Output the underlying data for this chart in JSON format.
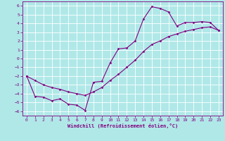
{
  "xlabel": "Windchill (Refroidissement éolien,°C)",
  "background_color": "#b0e8e8",
  "grid_color": "#ffffff",
  "line_color": "#800080",
  "curve1_x": [
    0,
    1,
    2,
    3,
    4,
    5,
    6,
    7,
    8,
    9,
    10,
    11,
    12,
    13,
    14,
    15,
    16,
    17,
    18,
    19,
    20,
    21,
    22,
    23
  ],
  "curve1_y": [
    -2,
    -4.3,
    -4.4,
    -4.8,
    -4.6,
    -5.2,
    -5.3,
    -5.9,
    -2.7,
    -2.6,
    -0.5,
    1.1,
    1.2,
    2.0,
    4.5,
    5.9,
    5.7,
    5.3,
    3.7,
    4.1,
    4.1,
    4.2,
    4.1,
    3.2
  ],
  "curve2_x": [
    0,
    1,
    2,
    3,
    4,
    5,
    6,
    7,
    8,
    9,
    10,
    11,
    12,
    13,
    14,
    15,
    16,
    17,
    18,
    19,
    20,
    21,
    22,
    23
  ],
  "curve2_y": [
    -2,
    -2.5,
    -3.0,
    -3.3,
    -3.5,
    -3.8,
    -4.0,
    -4.2,
    -3.8,
    -3.3,
    -2.5,
    -1.8,
    -1.0,
    -0.2,
    0.8,
    1.6,
    2.0,
    2.5,
    2.8,
    3.1,
    3.3,
    3.5,
    3.6,
    3.2
  ],
  "xlim": [
    -0.5,
    23.5
  ],
  "ylim": [
    -6.5,
    6.5
  ],
  "yticks": [
    -6,
    -5,
    -4,
    -3,
    -2,
    -1,
    0,
    1,
    2,
    3,
    4,
    5,
    6
  ],
  "xticks": [
    0,
    1,
    2,
    3,
    4,
    5,
    6,
    7,
    8,
    9,
    10,
    11,
    12,
    13,
    14,
    15,
    16,
    17,
    18,
    19,
    20,
    21,
    22,
    23
  ],
  "tick_fontsize": 4.5,
  "xlabel_fontsize": 5,
  "marker_size": 1.5,
  "line_width": 0.8
}
